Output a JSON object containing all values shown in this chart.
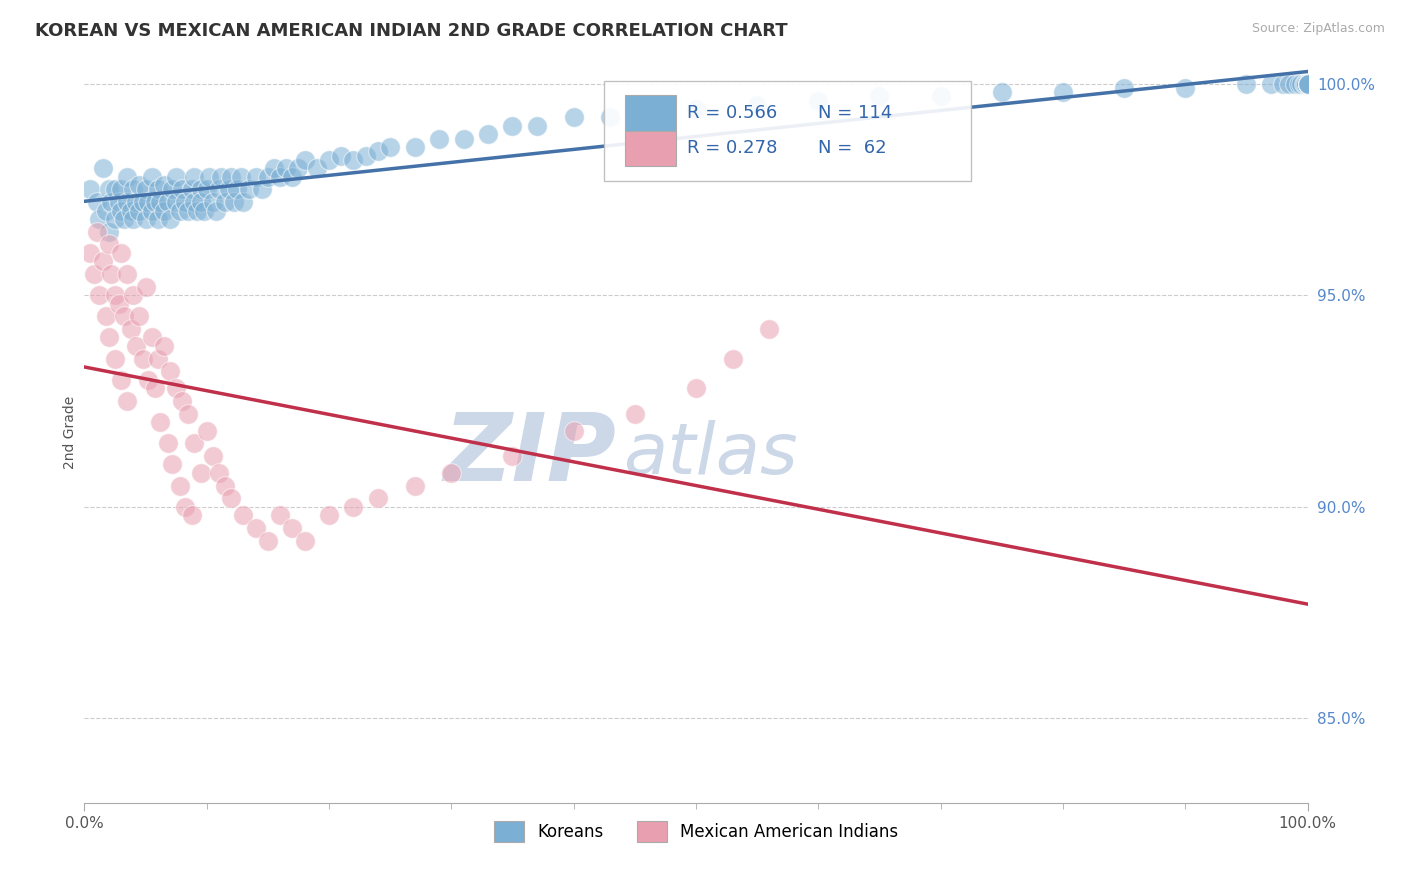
{
  "title": "KOREAN VS MEXICAN AMERICAN INDIAN 2ND GRADE CORRELATION CHART",
  "source_text": "Source: ZipAtlas.com",
  "ylabel": "2nd Grade",
  "xlim": [
    0.0,
    1.0
  ],
  "ylim": [
    0.83,
    1.005
  ],
  "yticks": [
    0.85,
    0.9,
    0.95,
    1.0
  ],
  "ytick_labels": [
    "85.0%",
    "90.0%",
    "95.0%",
    "100.0%"
  ],
  "xtick_labels": [
    "0.0%",
    "100.0%"
  ],
  "korean_R": 0.566,
  "korean_N": 114,
  "mexican_R": 0.278,
  "mexican_N": 62,
  "korean_color": "#7bafd4",
  "mexican_color": "#e8a0b0",
  "korean_line_color": "#4472a8",
  "mexican_line_color": "#c0304a",
  "background_color": "#ffffff",
  "grid_color": "#cccccc",
  "watermark_zip": "ZIP",
  "watermark_atlas": "atlas",
  "watermark_color": "#ccd8e8",
  "legend_korean": "Koreans",
  "legend_mexican": "Mexican American Indians",
  "title_fontsize": 13,
  "axis_label_fontsize": 10,
  "tick_fontsize": 11,
  "legend_fontsize": 12,
  "korean_x": [
    0.005,
    0.01,
    0.012,
    0.015,
    0.018,
    0.02,
    0.02,
    0.022,
    0.025,
    0.025,
    0.028,
    0.03,
    0.03,
    0.032,
    0.035,
    0.035,
    0.038,
    0.04,
    0.04,
    0.042,
    0.045,
    0.045,
    0.048,
    0.05,
    0.05,
    0.052,
    0.055,
    0.055,
    0.058,
    0.06,
    0.06,
    0.062,
    0.065,
    0.065,
    0.068,
    0.07,
    0.072,
    0.075,
    0.075,
    0.078,
    0.08,
    0.082,
    0.085,
    0.088,
    0.09,
    0.09,
    0.092,
    0.095,
    0.095,
    0.098,
    0.1,
    0.102,
    0.105,
    0.108,
    0.11,
    0.112,
    0.115,
    0.118,
    0.12,
    0.122,
    0.125,
    0.128,
    0.13,
    0.135,
    0.14,
    0.145,
    0.15,
    0.155,
    0.16,
    0.165,
    0.17,
    0.175,
    0.18,
    0.19,
    0.2,
    0.21,
    0.22,
    0.23,
    0.24,
    0.25,
    0.27,
    0.29,
    0.31,
    0.33,
    0.35,
    0.37,
    0.4,
    0.43,
    0.46,
    0.5,
    0.55,
    0.6,
    0.65,
    0.7,
    0.75,
    0.8,
    0.85,
    0.9,
    0.95,
    0.97,
    0.98,
    0.985,
    0.99,
    0.993,
    0.995,
    0.997,
    0.998,
    0.999,
    1.0,
    1.0,
    1.0,
    1.0,
    1.0,
    1.0
  ],
  "korean_y": [
    0.975,
    0.972,
    0.968,
    0.98,
    0.97,
    0.975,
    0.965,
    0.972,
    0.968,
    0.975,
    0.972,
    0.97,
    0.975,
    0.968,
    0.972,
    0.978,
    0.97,
    0.975,
    0.968,
    0.972,
    0.97,
    0.976,
    0.972,
    0.968,
    0.975,
    0.972,
    0.97,
    0.978,
    0.972,
    0.968,
    0.975,
    0.972,
    0.97,
    0.976,
    0.972,
    0.968,
    0.975,
    0.972,
    0.978,
    0.97,
    0.975,
    0.972,
    0.97,
    0.975,
    0.972,
    0.978,
    0.97,
    0.975,
    0.972,
    0.97,
    0.975,
    0.978,
    0.972,
    0.97,
    0.975,
    0.978,
    0.972,
    0.975,
    0.978,
    0.972,
    0.975,
    0.978,
    0.972,
    0.975,
    0.978,
    0.975,
    0.978,
    0.98,
    0.978,
    0.98,
    0.978,
    0.98,
    0.982,
    0.98,
    0.982,
    0.983,
    0.982,
    0.983,
    0.984,
    0.985,
    0.985,
    0.987,
    0.987,
    0.988,
    0.99,
    0.99,
    0.992,
    0.992,
    0.993,
    0.994,
    0.995,
    0.996,
    0.997,
    0.997,
    0.998,
    0.998,
    0.999,
    0.999,
    1.0,
    1.0,
    1.0,
    1.0,
    1.0,
    1.0,
    1.0,
    1.0,
    1.0,
    1.0,
    1.0,
    1.0,
    1.0,
    1.0,
    1.0,
    1.0
  ],
  "mexican_x": [
    0.005,
    0.008,
    0.01,
    0.012,
    0.015,
    0.018,
    0.02,
    0.02,
    0.022,
    0.025,
    0.025,
    0.028,
    0.03,
    0.03,
    0.032,
    0.035,
    0.035,
    0.038,
    0.04,
    0.042,
    0.045,
    0.048,
    0.05,
    0.052,
    0.055,
    0.058,
    0.06,
    0.062,
    0.065,
    0.068,
    0.07,
    0.072,
    0.075,
    0.078,
    0.08,
    0.082,
    0.085,
    0.088,
    0.09,
    0.095,
    0.1,
    0.105,
    0.11,
    0.115,
    0.12,
    0.13,
    0.14,
    0.15,
    0.16,
    0.17,
    0.18,
    0.2,
    0.22,
    0.24,
    0.27,
    0.3,
    0.35,
    0.4,
    0.45,
    0.5,
    0.53,
    0.56
  ],
  "mexican_y": [
    0.96,
    0.955,
    0.965,
    0.95,
    0.958,
    0.945,
    0.962,
    0.94,
    0.955,
    0.95,
    0.935,
    0.948,
    0.96,
    0.93,
    0.945,
    0.955,
    0.925,
    0.942,
    0.95,
    0.938,
    0.945,
    0.935,
    0.952,
    0.93,
    0.94,
    0.928,
    0.935,
    0.92,
    0.938,
    0.915,
    0.932,
    0.91,
    0.928,
    0.905,
    0.925,
    0.9,
    0.922,
    0.898,
    0.915,
    0.908,
    0.918,
    0.912,
    0.908,
    0.905,
    0.902,
    0.898,
    0.895,
    0.892,
    0.898,
    0.895,
    0.892,
    0.898,
    0.9,
    0.902,
    0.905,
    0.908,
    0.912,
    0.918,
    0.922,
    0.928,
    0.935,
    0.942
  ]
}
